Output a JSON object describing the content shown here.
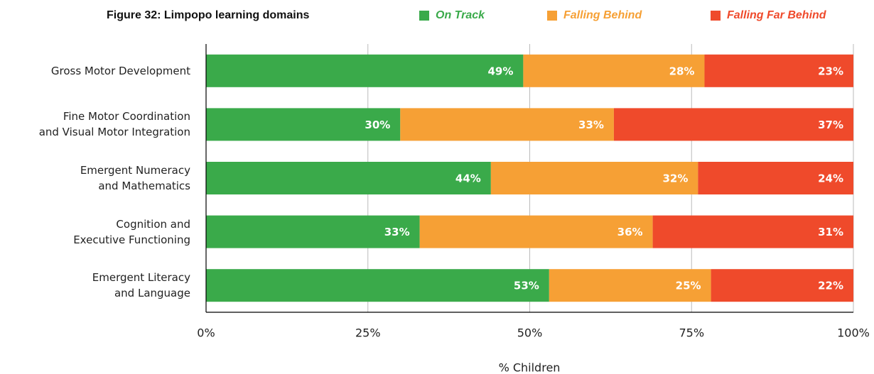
{
  "chart_data": {
    "type": "stacked_bar_horizontal",
    "title": "Figure 32:  Limpopo learning domains",
    "xlabel": "% Children",
    "categories": [
      "Gross Motor Development",
      "Fine Motor Coordination\nand Visual Motor Integration",
      "Emergent Numeracy\nand Mathematics",
      "Cognition and\nExecutive Functioning",
      "Emergent Literacy\nand Language"
    ],
    "series": [
      {
        "name": "On Track",
        "color": "#3aaa4a",
        "values": [
          49,
          30,
          44,
          33,
          53
        ],
        "value_labels": [
          "49%",
          "30%",
          "44%",
          "33%",
          "53%"
        ]
      },
      {
        "name": "Falling Behind",
        "color": "#f6a035",
        "values": [
          28,
          33,
          32,
          36,
          25
        ],
        "value_labels": [
          "28%",
          "33%",
          "32%",
          "36%",
          "25%"
        ]
      },
      {
        "name": "Falling Far Behind",
        "color": "#ef4a2b",
        "values": [
          23,
          37,
          24,
          31,
          22
        ],
        "value_labels": [
          "23%",
          "37%",
          "24%",
          "31%",
          "22%"
        ]
      }
    ],
    "xlim": [
      0,
      100
    ],
    "xticks": [
      {
        "value": 0,
        "label": "0%"
      },
      {
        "value": 25,
        "label": "25%"
      },
      {
        "value": 50,
        "label": "50%"
      },
      {
        "value": 75,
        "label": "75%"
      },
      {
        "value": 100,
        "label": "100%"
      }
    ],
    "grid": true,
    "legend": "top"
  }
}
